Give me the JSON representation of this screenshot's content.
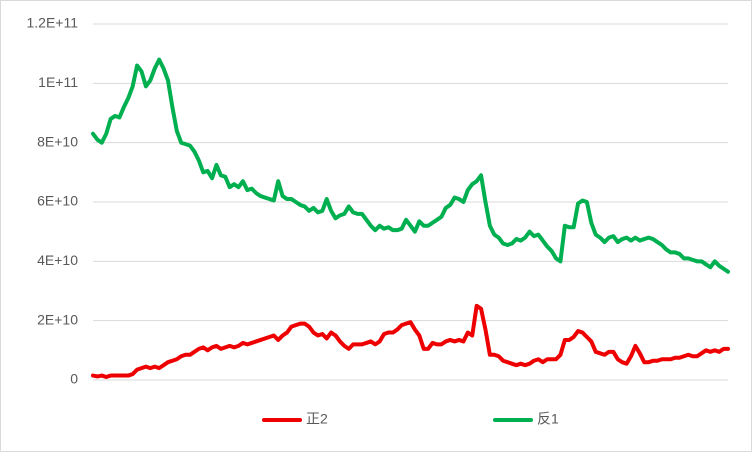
{
  "chart_data": {
    "type": "line",
    "ylim": [
      0,
      120000000000.0
    ],
    "yticks": [
      0,
      {
        "value": 20000000000.0,
        "label": "2E+10"
      },
      {
        "value": 40000000000.0,
        "label": "4E+10"
      },
      {
        "value": 60000000000.0,
        "label": "6E+10"
      },
      {
        "value": 80000000000.0,
        "label": "8E+10"
      },
      {
        "value": 100000000000.0,
        "label": "1E+11"
      },
      {
        "value": 120000000000.0,
        "label": "1.2E+11"
      }
    ],
    "grid": true,
    "legend": "bottom",
    "series": [
      {
        "name": "正2",
        "color": "#ee0000",
        "values": [
          1500000000.0,
          1200000000.0,
          1500000000.0,
          1000000000.0,
          1500000000.0,
          1500000000.0,
          1500000000.0,
          1500000000.0,
          1500000000.0,
          2000000000.0,
          3500000000.0,
          4000000000.0,
          4500000000.0,
          4000000000.0,
          4500000000.0,
          4000000000.0,
          5000000000.0,
          6000000000.0,
          6500000000.0,
          7000000000.0,
          8000000000.0,
          8500000000.0,
          8500000000.0,
          9500000000.0,
          10500000000.0,
          11000000000.0,
          10000000000.0,
          11000000000.0,
          11500000000.0,
          10500000000.0,
          11000000000.0,
          11500000000.0,
          11000000000.0,
          11500000000.0,
          12500000000.0,
          12000000000.0,
          12500000000.0,
          13000000000.0,
          13500000000.0,
          14000000000.0,
          14500000000.0,
          15000000000.0,
          13500000000.0,
          15000000000.0,
          16000000000.0,
          18000000000.0,
          18500000000.0,
          19000000000.0,
          19000000000.0,
          18000000000.0,
          16000000000.0,
          15000000000.0,
          15500000000.0,
          14000000000.0,
          16000000000.0,
          15000000000.0,
          13000000000.0,
          11500000000.0,
          10500000000.0,
          12000000000.0,
          12000000000.0,
          12000000000.0,
          12500000000.0,
          13000000000.0,
          12000000000.0,
          13000000000.0,
          15500000000.0,
          16000000000.0,
          16000000000.0,
          17000000000.0,
          18500000000.0,
          19000000000.0,
          19500000000.0,
          17000000000.0,
          15000000000.0,
          10500000000.0,
          10500000000.0,
          12500000000.0,
          12000000000.0,
          12000000000.0,
          13000000000.0,
          13500000000.0,
          13000000000.0,
          13500000000.0,
          13000000000.0,
          16000000000.0,
          15000000000.0,
          25000000000.0,
          24000000000.0,
          17000000000.0,
          8500000000.0,
          8500000000.0,
          8000000000.0,
          6500000000.0,
          6000000000.0,
          5500000000.0,
          5000000000.0,
          5500000000.0,
          5000000000.0,
          5500000000.0,
          6500000000.0,
          7000000000.0,
          6000000000.0,
          7000000000.0,
          7000000000.0,
          7000000000.0,
          8500000000.0,
          13500000000.0,
          13500000000.0,
          14500000000.0,
          16500000000.0,
          16000000000.0,
          14500000000.0,
          13000000000.0,
          9500000000.0,
          9000000000.0,
          8500000000.0,
          9500000000.0,
          9500000000.0,
          7000000000.0,
          6000000000.0,
          5500000000.0,
          8000000000.0,
          11500000000.0,
          9000000000.0,
          6000000000.0,
          6000000000.0,
          6500000000.0,
          6500000000.0,
          7000000000.0,
          7000000000.0,
          7000000000.0,
          7500000000.0,
          7500000000.0,
          8000000000.0,
          8500000000.0,
          8000000000.0,
          8000000000.0,
          9000000000.0,
          10000000000.0,
          9500000000.0,
          10000000000.0,
          9500000000.0,
          10500000000.0,
          10500000000.0
        ]
      },
      {
        "name": "反1",
        "color": "#00b050",
        "values": [
          83000000000.0,
          81000000000.0,
          80000000000.0,
          83000000000.0,
          88000000000.0,
          89000000000.0,
          88500000000.0,
          92000000000.0,
          95000000000.0,
          99000000000.0,
          106000000000.0,
          104000000000.0,
          99000000000.0,
          101000000000.0,
          105000000000.0,
          108000000000.0,
          105000000000.0,
          101000000000.0,
          92000000000.0,
          84000000000.0,
          80000000000.0,
          79500000000.0,
          79000000000.0,
          77000000000.0,
          74000000000.0,
          70000000000.0,
          70500000000.0,
          68000000000.0,
          72500000000.0,
          69000000000.0,
          68500000000.0,
          65000000000.0,
          66000000000.0,
          65000000000.0,
          67000000000.0,
          64000000000.0,
          64500000000.0,
          63000000000.0,
          62000000000.0,
          61500000000.0,
          61000000000.0,
          60500000000.0,
          67000000000.0,
          62000000000.0,
          61000000000.0,
          61000000000.0,
          60000000000.0,
          59000000000.0,
          58500000000.0,
          57000000000.0,
          58000000000.0,
          56500000000.0,
          57000000000.0,
          61000000000.0,
          57000000000.0,
          54500000000.0,
          55500000000.0,
          56000000000.0,
          58500000000.0,
          56500000000.0,
          56000000000.0,
          56000000000.0,
          54000000000.0,
          52000000000.0,
          50500000000.0,
          52000000000.0,
          51000000000.0,
          51500000000.0,
          50500000000.0,
          50500000000.0,
          51000000000.0,
          54000000000.0,
          52000000000.0,
          50000000000.0,
          53500000000.0,
          52000000000.0,
          52000000000.0,
          53000000000.0,
          54000000000.0,
          55000000000.0,
          58000000000.0,
          59000000000.0,
          61500000000.0,
          61000000000.0,
          60000000000.0,
          64000000000.0,
          66000000000.0,
          67000000000.0,
          69000000000.0,
          60000000000.0,
          52000000000.0,
          49000000000.0,
          48000000000.0,
          46000000000.0,
          45500000000.0,
          46000000000.0,
          47500000000.0,
          47000000000.0,
          48000000000.0,
          50000000000.0,
          48500000000.0,
          49000000000.0,
          47000000000.0,
          45000000000.0,
          43500000000.0,
          41000000000.0,
          40000000000.0,
          52000000000.0,
          51500000000.0,
          51500000000.0,
          59500000000.0,
          60500000000.0,
          60000000000.0,
          53000000000.0,
          49000000000.0,
          48000000000.0,
          46500000000.0,
          48000000000.0,
          48500000000.0,
          46500000000.0,
          47500000000.0,
          48000000000.0,
          47000000000.0,
          48000000000.0,
          47000000000.0,
          47500000000.0,
          48000000000.0,
          47500000000.0,
          46500000000.0,
          45500000000.0,
          44000000000.0,
          43000000000.0,
          43000000000.0,
          42500000000.0,
          41000000000.0,
          41000000000.0,
          40500000000.0,
          40000000000.0,
          40000000000.0,
          39000000000.0,
          38000000000.0,
          40000000000.0,
          38500000000.0,
          37500000000.0,
          36500000000.0
        ]
      }
    ]
  }
}
